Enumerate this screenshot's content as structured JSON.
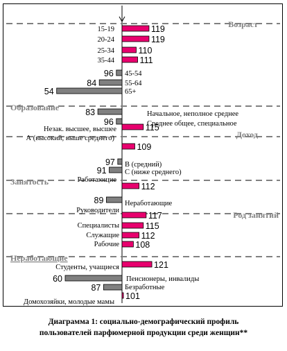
{
  "chart_data": {
    "type": "bar",
    "orientation": "horizontal",
    "baseline": 100,
    "colors": {
      "above": "#e8006e",
      "below": "#808080",
      "dashes": "#808080"
    },
    "sections": [
      {
        "name": "Возраст",
        "items": [
          {
            "label": "15-19",
            "value": 119
          },
          {
            "label": "20-24",
            "value": 119
          },
          {
            "label": "25-34",
            "value": 110
          },
          {
            "label": "35-44",
            "value": 111
          },
          {
            "label": "45-54",
            "value": 96
          },
          {
            "label": "55-64",
            "value": 84
          },
          {
            "label": "65+",
            "value": 54
          }
        ]
      },
      {
        "name": "Образование",
        "items": [
          {
            "label": "Начальное, неполное среднее",
            "value": 83
          },
          {
            "label": "Среднее общее, специальное",
            "value": 96
          },
          {
            "label": "Незак. высшее, высшее",
            "value": 115
          }
        ]
      },
      {
        "name": "Доход",
        "items": [
          {
            "label": "А (высокий, выше среднего)",
            "value": 109
          },
          {
            "label": "В (средний)",
            "value": 97
          },
          {
            "label": "С (ниже среднего)",
            "value": 91
          }
        ]
      },
      {
        "name": "Занятость",
        "items": [
          {
            "label": "Работающие",
            "value": 112
          },
          {
            "label": "Неработающие",
            "value": 89
          }
        ]
      },
      {
        "name": "Род занятий",
        "items": [
          {
            "label": "Руководители",
            "value": 117
          },
          {
            "label": "Специалисты",
            "value": 115
          },
          {
            "label": "Служащие",
            "value": 112
          },
          {
            "label": "Рабочие",
            "value": 108
          }
        ]
      },
      {
        "name": "Неработающие",
        "items": [
          {
            "label": "Студенты, учащиеся",
            "value": 121
          },
          {
            "label": "Пенсионеры, инвалиды",
            "value": 60
          },
          {
            "label": "Безработные",
            "value": 87
          },
          {
            "label": "Домохозяйки, молодые мамы",
            "value": 101
          }
        ]
      }
    ]
  },
  "caption": {
    "line1": "Диаграмма 1: социально-демографический профиль",
    "line2": "пользователей парфюмерной продукции среди женщин**"
  }
}
